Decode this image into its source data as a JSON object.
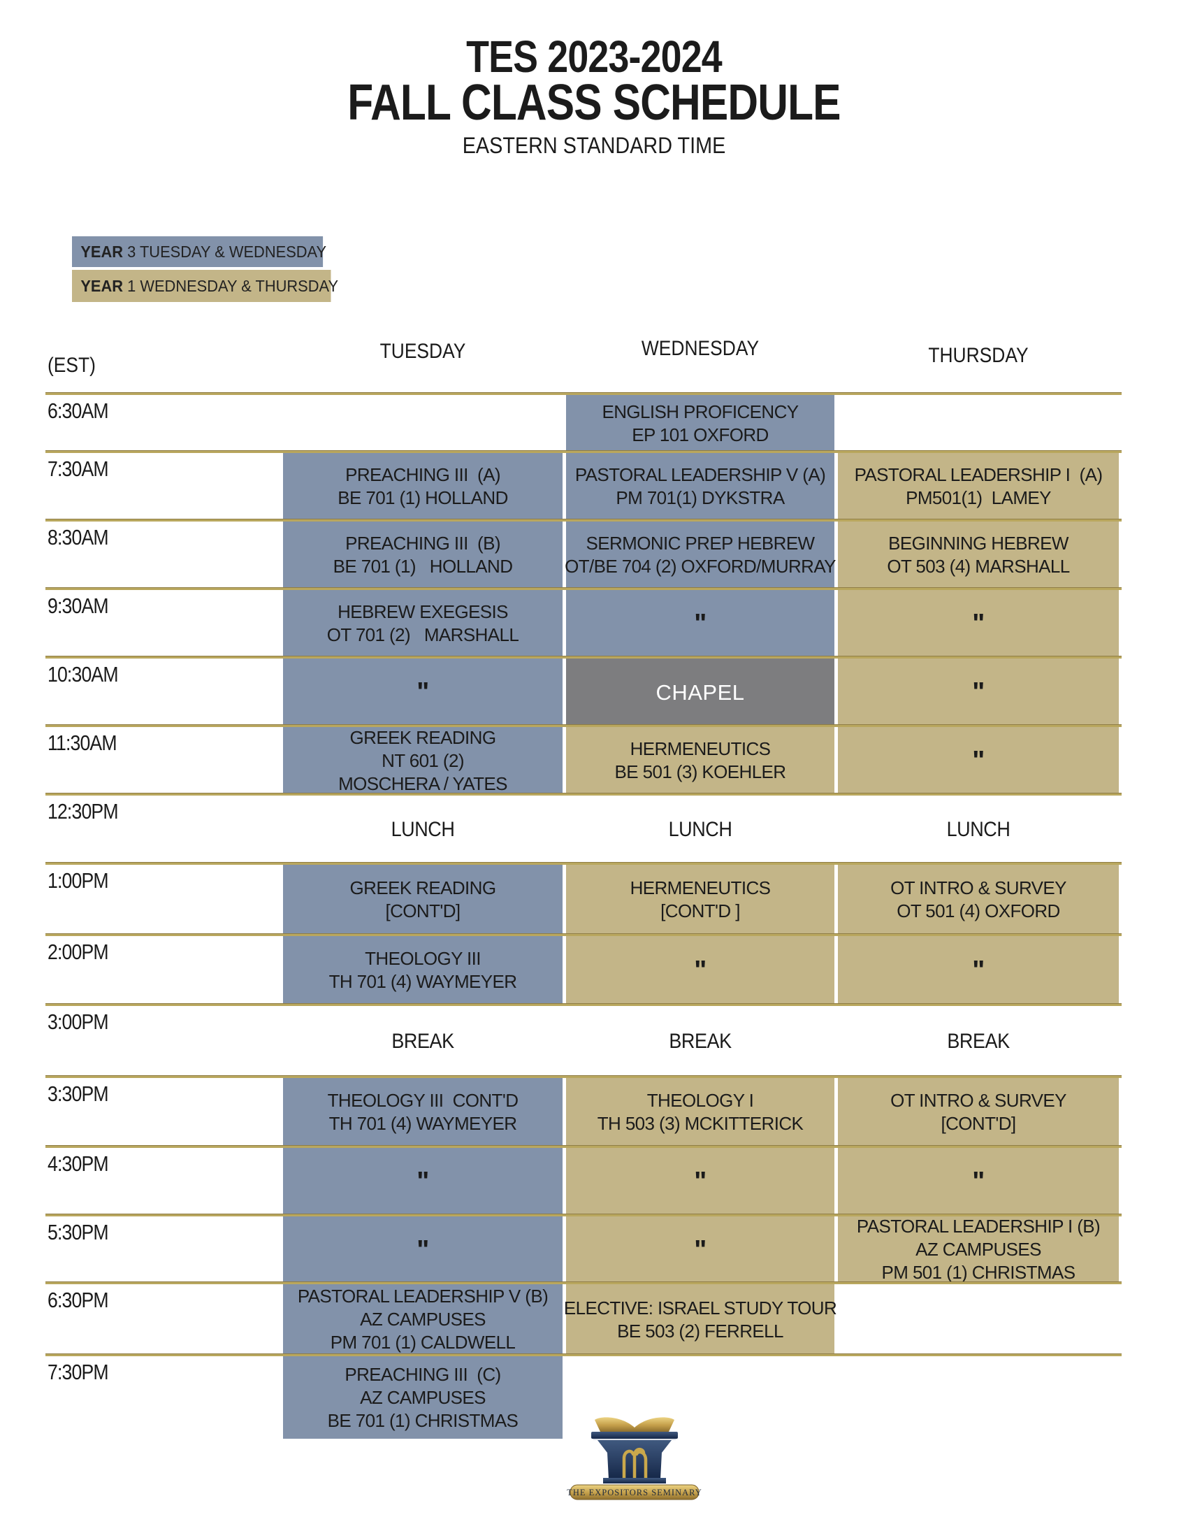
{
  "title": {
    "line1": "TES 2023-2024",
    "line2": "FALL CLASS SCHEDULE",
    "subtitle": "EASTERN STANDARD TIME"
  },
  "legend": [
    {
      "bold": "YEAR",
      "rest": " 3 TUESDAY & WEDNESDAY",
      "style": "year3"
    },
    {
      "bold": "YEAR",
      "rest": " 1 WEDNESDAY & THURSDAY",
      "style": "year1"
    }
  ],
  "colors": {
    "year3": "#8292aa",
    "year1": "#c3b588",
    "chapel": "#7d7d7f",
    "line": "#b9a75e"
  },
  "table": {
    "time_header": "(EST)",
    "day_headers": [
      "TUESDAY",
      "WEDNESDAY",
      "THURSDAY"
    ],
    "rows": [
      {
        "time": "6:30AM",
        "cells": [
          null,
          {
            "style": "year3",
            "lines": [
              "ENGLISH PROFICENCY",
              "EP 101 OXFORD"
            ]
          },
          null
        ]
      },
      {
        "time": "7:30AM",
        "cells": [
          {
            "style": "year3",
            "lines": [
              "PREACHING III  (A)",
              "BE 701 (1) HOLLAND"
            ]
          },
          {
            "style": "year3",
            "lines": [
              "PASTORAL LEADERSHIP V (A)",
              "PM 701(1) DYKSTRA"
            ]
          },
          {
            "style": "year1",
            "lines": [
              "PASTORAL LEADERSHIP I  (A)",
              "PM501(1)  LAMEY"
            ]
          }
        ]
      },
      {
        "time": "8:30AM",
        "cells": [
          {
            "style": "year3",
            "lines": [
              "PREACHING III  (B)",
              "BE 701 (1)   HOLLAND"
            ]
          },
          {
            "style": "year3",
            "lines": [
              "SERMONIC PREP HEBREW",
              "OT/BE 704 (2) OXFORD/MURRAY"
            ]
          },
          {
            "style": "year1",
            "lines": [
              "BEGINNING HEBREW",
              "OT 503 (4) MARSHALL"
            ]
          }
        ]
      },
      {
        "time": "9:30AM",
        "cells": [
          {
            "style": "year3",
            "lines": [
              "HEBREW EXEGESIS",
              "OT 701 (2)   MARSHALL"
            ]
          },
          {
            "style": "year3",
            "lines": [
              "\""
            ]
          },
          {
            "style": "year1",
            "lines": [
              "\""
            ]
          }
        ]
      },
      {
        "time": "10:30AM",
        "cells": [
          {
            "style": "year3",
            "lines": [
              "\""
            ]
          },
          {
            "style": "chapel",
            "lines": [
              "CHAPEL"
            ]
          },
          {
            "style": "year1",
            "lines": [
              "\""
            ]
          }
        ]
      },
      {
        "time": "11:30AM",
        "cells": [
          {
            "style": "year3",
            "lines": [
              "GREEK READING",
              "NT 601 (2)",
              "MOSCHERA / YATES"
            ]
          },
          {
            "style": "year1",
            "lines": [
              "HERMENEUTICS",
              "BE 501 (3) KOEHLER"
            ]
          },
          {
            "style": "year1",
            "lines": [
              "\""
            ]
          }
        ]
      },
      {
        "time": "12:30PM",
        "cells": [
          {
            "style": "plain",
            "lines": [
              "LUNCH"
            ]
          },
          {
            "style": "plain",
            "lines": [
              "LUNCH"
            ]
          },
          {
            "style": "plain",
            "lines": [
              "LUNCH"
            ]
          }
        ]
      },
      {
        "time": "1:00PM",
        "cells": [
          {
            "style": "year3",
            "lines": [
              "GREEK READING",
              "[CONT'D]"
            ]
          },
          {
            "style": "year1",
            "lines": [
              "HERMENEUTICS",
              "[CONT'D ]"
            ]
          },
          {
            "style": "year1",
            "lines": [
              "OT INTRO & SURVEY",
              "OT 501 (4) OXFORD"
            ]
          }
        ]
      },
      {
        "time": "2:00PM",
        "cells": [
          {
            "style": "year3",
            "lines": [
              "THEOLOGY III",
              "TH 701 (4) WAYMEYER"
            ]
          },
          {
            "style": "year1",
            "lines": [
              "\""
            ]
          },
          {
            "style": "year1",
            "lines": [
              "\""
            ]
          }
        ]
      },
      {
        "time": "3:00PM",
        "cells": [
          {
            "style": "plain",
            "lines": [
              "BREAK"
            ]
          },
          {
            "style": "plain",
            "lines": [
              "BREAK"
            ]
          },
          {
            "style": "plain",
            "lines": [
              "BREAK"
            ]
          }
        ]
      },
      {
        "time": "3:30PM",
        "cells": [
          {
            "style": "year3",
            "lines": [
              "THEOLOGY III  CONT'D",
              "TH 701 (4) WAYMEYER"
            ]
          },
          {
            "style": "year1",
            "lines": [
              "THEOLOGY I",
              "TH 503 (3) MCKITTERICK"
            ]
          },
          {
            "style": "year1",
            "lines": [
              "OT INTRO & SURVEY",
              "[CONT'D]"
            ]
          }
        ]
      },
      {
        "time": "4:30PM",
        "cells": [
          {
            "style": "year3",
            "lines": [
              "\""
            ]
          },
          {
            "style": "year1",
            "lines": [
              "\""
            ]
          },
          {
            "style": "year1",
            "lines": [
              "\""
            ]
          }
        ]
      },
      {
        "time": "5:30PM",
        "cells": [
          {
            "style": "year3",
            "lines": [
              "\""
            ]
          },
          {
            "style": "year1",
            "lines": [
              "\""
            ]
          },
          {
            "style": "year1",
            "lines": [
              "PASTORAL LEADERSHIP I (B)",
              "AZ CAMPUSES",
              "PM 501 (1) CHRISTMAS"
            ]
          }
        ]
      },
      {
        "time": "6:30PM",
        "cells": [
          {
            "style": "year3",
            "lines": [
              "PASTORAL LEADERSHIP V (B)",
              "AZ CAMPUSES",
              "PM 701 (1) CALDWELL"
            ]
          },
          {
            "style": "year1",
            "lines": [
              "ELECTIVE: ISRAEL STUDY TOUR",
              "BE 503 (2) FERRELL"
            ]
          },
          null
        ]
      },
      {
        "time": "7:30PM",
        "cells": [
          {
            "style": "year3",
            "lines": [
              "PREACHING III  (C)",
              "AZ CAMPUSES",
              "BE 701 (1) CHRISTMAS"
            ]
          },
          null,
          null
        ]
      }
    ]
  },
  "footer_logo": {
    "banner": "THE EXPOSITORS SEMINARY"
  }
}
